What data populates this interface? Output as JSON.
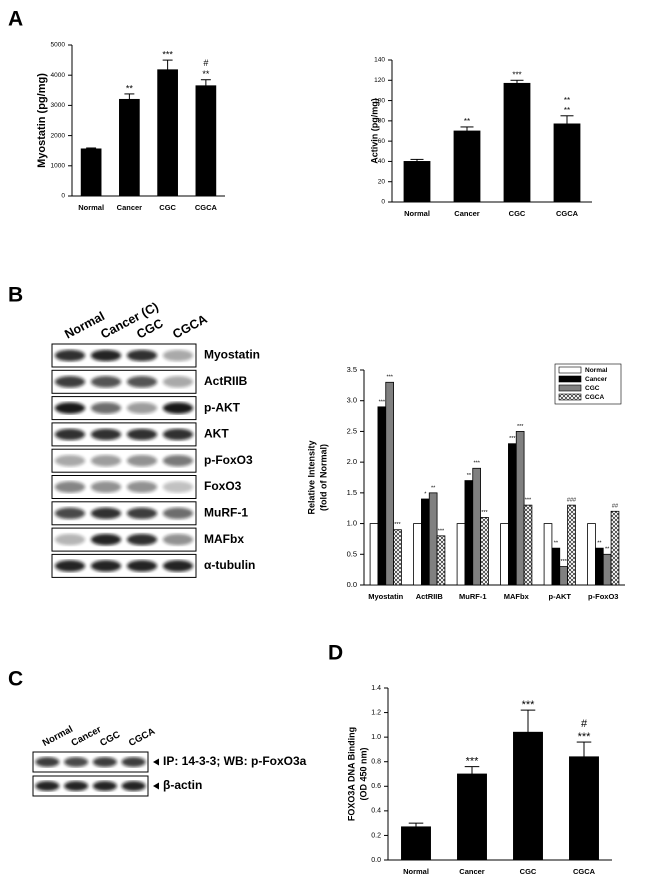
{
  "panel_labels": [
    "A",
    "B",
    "C",
    "D"
  ],
  "chart_data": [
    {
      "type": "bar",
      "ylabel": "Myostatin (pg/mg)",
      "categories": [
        "Normal",
        "Cancer",
        "CGC",
        "CGCA"
      ],
      "values": [
        1560,
        3200,
        4180,
        3650
      ],
      "errors": [
        30,
        180,
        320,
        200
      ],
      "color": "#000000",
      "annotations": [
        null,
        [
          "**"
        ],
        [
          "***"
        ],
        [
          "#",
          "**"
        ]
      ],
      "ylim": [
        0,
        5000
      ],
      "yticks": [
        0,
        1000,
        2000,
        3000,
        4000,
        5000
      ]
    },
    {
      "type": "bar",
      "ylabel": "Activin (pg/mg)",
      "categories": [
        "Normal",
        "Cancer",
        "CGC",
        "CGCA"
      ],
      "values": [
        40,
        70,
        117,
        77
      ],
      "errors": [
        2,
        4,
        3,
        8
      ],
      "color": "#000000",
      "annotations": [
        null,
        [
          "**"
        ],
        [
          "***"
        ],
        [
          "**",
          "**"
        ]
      ],
      "ylim": [
        0,
        140
      ],
      "yticks": [
        0,
        20,
        40,
        60,
        80,
        100,
        120,
        140
      ]
    },
    {
      "type": "bar",
      "ylabel": [
        "Relative Intensity",
        "(fold of Normal)"
      ],
      "categories": [
        "Myostatin",
        "ActRIIB",
        "MuRF-1",
        "MAFbx",
        "p-AKT",
        "p-FoxO3"
      ],
      "series": [
        {
          "name": "Normal",
          "color": "#ffffff",
          "values": [
            1.0,
            1.0,
            1.0,
            1.0,
            1.0,
            1.0
          ],
          "annotations": [
            null,
            null,
            null,
            null,
            null,
            null
          ]
        },
        {
          "name": "Cancer",
          "color": "#000000",
          "values": [
            2.9,
            1.4,
            1.7,
            2.3,
            0.6,
            0.6
          ],
          "annotations": [
            "***",
            "*",
            "**",
            "***",
            "**",
            "**"
          ]
        },
        {
          "name": "CGC",
          "color": "#808080",
          "values": [
            3.3,
            1.5,
            1.9,
            2.5,
            0.3,
            0.5
          ],
          "annotations": [
            "***",
            "**",
            "***",
            "***",
            "***",
            "**"
          ]
        },
        {
          "name": "CGCA",
          "color": "#ffffff",
          "hatch": true,
          "values": [
            0.9,
            0.8,
            1.1,
            1.3,
            1.3,
            1.2
          ],
          "annotations": [
            "***",
            "***",
            "***",
            "***",
            "###",
            "##"
          ]
        }
      ],
      "legend": "upper right",
      "ylim": [
        0,
        3.5
      ],
      "yticks": [
        {
          "value": 0,
          "label": "0.0"
        },
        0.5,
        {
          "value": 1,
          "label": "1.0"
        },
        1.5,
        {
          "value": 2,
          "label": "2.0"
        },
        2.5,
        {
          "value": 3,
          "label": "3.0"
        },
        3.5
      ]
    },
    {
      "type": "bar",
      "ylabel": [
        "FOXO3A DNA Binding",
        "(OD 450 nm)"
      ],
      "categories": [
        "Normal",
        "Cancer",
        "CGC",
        "CGCA"
      ],
      "values": [
        0.27,
        0.7,
        1.04,
        0.84
      ],
      "errors": [
        0.03,
        0.06,
        0.18,
        0.12
      ],
      "color": "#000000",
      "annotations": [
        null,
        [
          "***"
        ],
        [
          "***"
        ],
        [
          "#",
          "***"
        ]
      ],
      "ylim": [
        0,
        1.4
      ],
      "yticks": [
        {
          "value": 0,
          "label": "0.0"
        },
        0.2,
        0.4,
        0.6,
        0.8,
        {
          "value": 1,
          "label": "1.0"
        },
        1.2,
        1.4
      ]
    }
  ],
  "blot_b": {
    "lanes": [
      "Normal",
      "Cancer (C)",
      "CGC",
      "CGCA"
    ],
    "rows": [
      "Myostatin",
      "ActRIIB",
      "p-AKT",
      "AKT",
      "p-FoxO3",
      "FoxO3",
      "MuRF-1",
      "MAFbx",
      "α-tubulin"
    ]
  },
  "blot_c": {
    "lanes": [
      "Normal",
      "Cancer",
      "CGC",
      "CGCA"
    ],
    "rows": [
      "IP: 14-3-3; WB: p-FoxO3a",
      "β-actin"
    ]
  }
}
